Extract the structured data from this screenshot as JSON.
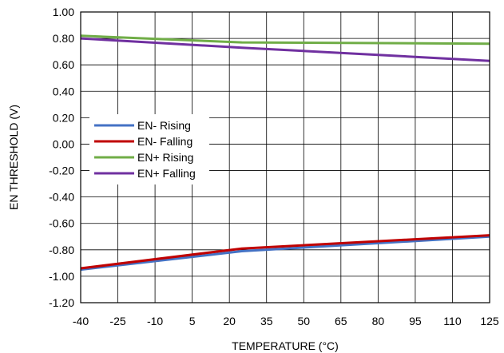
{
  "chart_data": {
    "type": "line",
    "xlabel": "TEMPERATURE (°C)",
    "ylabel": "EN THRESHOLD (V)",
    "xlim": [
      -40,
      125
    ],
    "ylim": [
      -1.2,
      1.0
    ],
    "x_ticks": [
      "-40",
      "-25",
      "-10",
      "5",
      "20",
      "35",
      "50",
      "65",
      "80",
      "95",
      "110",
      "125"
    ],
    "y_ticks": [
      "1.00",
      "0.80",
      "0.60",
      "0.40",
      "0.20",
      "0.00",
      "-0.20",
      "-0.40",
      "-0.60",
      "-0.80",
      "-1.00",
      "-1.20"
    ],
    "grid": true,
    "legend_position": "middle-left",
    "x": [
      -40,
      25,
      125
    ],
    "series": [
      {
        "name": "EN- Rising",
        "color": "#4472C4",
        "values": [
          -0.95,
          -0.81,
          -0.7
        ]
      },
      {
        "name": "EN- Falling",
        "color": "#C00000",
        "values": [
          -0.94,
          -0.79,
          -0.69
        ]
      },
      {
        "name": "EN+ Rising",
        "color": "#70AD47",
        "values": [
          0.82,
          0.77,
          0.76
        ]
      },
      {
        "name": "EN+ Falling",
        "color": "#7030A0",
        "values": [
          0.8,
          0.73,
          0.63
        ]
      }
    ]
  }
}
